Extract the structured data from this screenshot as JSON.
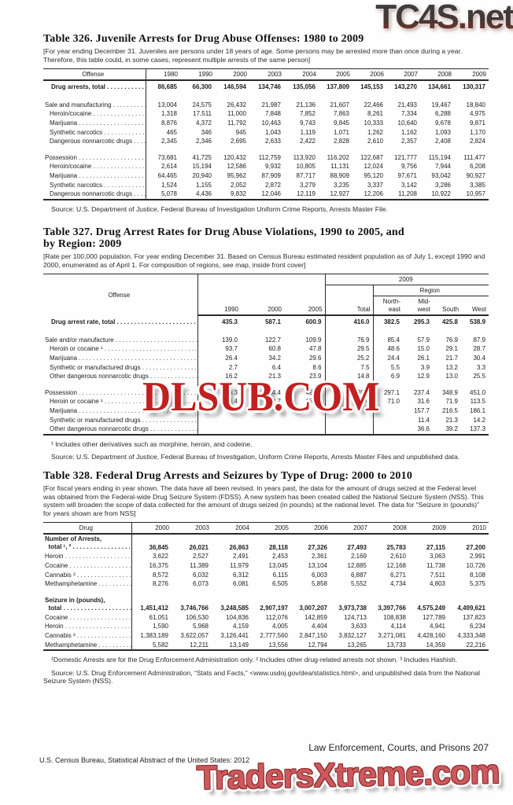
{
  "watermarks": {
    "top": "TC4S.net",
    "middle": "DLSUB.COM",
    "bottom": "TradersXtreme.com",
    "red_accent": "#c32020",
    "pink_accent": "#cb5a5c",
    "dark_gradient": [
      "#3d3d3d",
      "#7d3227"
    ]
  },
  "t326": {
    "title": "Table 326. Juvenile Arrests for Drug Abuse Offenses: 1980 to 2009",
    "note": "[For year ending December 31. Juveniles are persons under 18 years of age. Some persons may be arrested more than once during a year. Therefore, this table could, in some cases, represent multiple arrests of the same person]",
    "col_label": "Offense",
    "years": [
      "1980",
      "1990",
      "2000",
      "2003",
      "2004",
      "2005",
      "2006",
      "2007",
      "2008",
      "2009"
    ],
    "rows": [
      {
        "label": "Drug arrests, total",
        "cls": "total",
        "cells": [
          "86,685",
          "66,300",
          "146,594",
          "134,746",
          "135,056",
          "137,809",
          "145,153",
          "143,270",
          "134,661",
          "130,317"
        ]
      },
      {
        "spacer": true
      },
      {
        "label": "Sale and manufacturing",
        "cls": "",
        "cells": [
          "13,004",
          "24,575",
          "26,432",
          "21,987",
          "21,136",
          "21,607",
          "22,466",
          "21,493",
          "19,467",
          "18,840"
        ]
      },
      {
        "label": "Heroin/cocaine",
        "cls": "sub",
        "cells": [
          "1,318",
          "17,511",
          "11,000",
          "7,848",
          "7,852",
          "7,863",
          "8,261",
          "7,334",
          "6,288",
          "4,975"
        ]
      },
      {
        "label": "Marijuana",
        "cls": "sub",
        "cells": [
          "8,876",
          "4,372",
          "11,792",
          "10,463",
          "9,743",
          "9,845",
          "10,333",
          "10,640",
          "9,678",
          "9,871"
        ]
      },
      {
        "label": "Synthetic narcotics",
        "cls": "sub",
        "cells": [
          "465",
          "346",
          "945",
          "1,043",
          "1,119",
          "1,071",
          "1,262",
          "1,162",
          "1,093",
          "1,170"
        ]
      },
      {
        "label": "Dangerous nonnarcotic drugs",
        "cls": "sub",
        "cells": [
          "2,345",
          "2,346",
          "2,695",
          "2,633",
          "2,422",
          "2,828",
          "2,610",
          "2,357",
          "2,408",
          "2,824"
        ]
      },
      {
        "spacer": true
      },
      {
        "label": "Possession",
        "cls": "",
        "cells": [
          "73,681",
          "41,725",
          "120,432",
          "112,759",
          "113,920",
          "116,202",
          "122,687",
          "121,777",
          "115,194",
          "111,477"
        ]
      },
      {
        "label": "Heroin/cocaine",
        "cls": "sub",
        "cells": [
          "2,614",
          "15,194",
          "12,586",
          "9,932",
          "10,805",
          "11,131",
          "12,024",
          "9,756",
          "7,944",
          "6,208"
        ]
      },
      {
        "label": "Marijuana",
        "cls": "sub",
        "cells": [
          "64,465",
          "20,940",
          "95,962",
          "87,909",
          "87,717",
          "88,909",
          "95,120",
          "97,671",
          "93,042",
          "90,927"
        ]
      },
      {
        "label": "Synthetic narcotics",
        "cls": "sub",
        "cells": [
          "1,524",
          "1,155",
          "2,052",
          "2,872",
          "3,279",
          "3,235",
          "3,337",
          "3,142",
          "3,286",
          "3,385"
        ]
      },
      {
        "label": "Dangerous nonnarcotic drugs",
        "cls": "sub",
        "cells": [
          "5,078",
          "4,436",
          "9,832",
          "12,046",
          "12,119",
          "12,927",
          "12,206",
          "11,208",
          "10,922",
          "10,957"
        ]
      }
    ],
    "source": "Source: U.S. Department of Justice, Federal Bureau of Investigation Uniform Crime Reports, Arrests Master File."
  },
  "t327": {
    "title_line1": "Table 327. Drug Arrest Rates for Drug Abuse Violations, 1990 to 2005, and",
    "title_line2": "by Region: 2009",
    "note": "[Rate per 100,000 population. For year ending December 31. Based on Census Bureau estimated resident population as of July 1, except 1990 and 2000, enumerated as of April 1. For composition of regions, see map, inside front cover]",
    "header": {
      "offense": "Offense",
      "spanner_year": "2009",
      "spanner_region": "Region",
      "cols": [
        "1990",
        "2000",
        "2005",
        "Total",
        "North-\neast",
        "Mid-\nwest",
        "South",
        "West"
      ]
    },
    "rows": [
      {
        "label": "Drug arrest rate, total",
        "cls": "total",
        "cells": [
          "435.3",
          "587.1",
          "600.9",
          "416.0",
          "382.5",
          "295.3",
          "425.8",
          "538.9"
        ]
      },
      {
        "spacer": true
      },
      {
        "label": "Sale and/or manufacture",
        "cls": "",
        "cells": [
          "139.0",
          "122.7",
          "109.9",
          "76.9",
          "85.4",
          "57.9",
          "76.9",
          "87.9"
        ]
      },
      {
        "label": "Heroin or cocaine ¹",
        "cls": "sub",
        "cells": [
          "93.7",
          "60.8",
          "47.8",
          "29.5",
          "48.6",
          "15.0",
          "29.1",
          "28.7"
        ]
      },
      {
        "label": "Marijuana",
        "cls": "sub",
        "cells": [
          "26.4",
          "34.2",
          "29.6",
          "25.2",
          "24.4",
          "26.1",
          "21.7",
          "30.4"
        ]
      },
      {
        "label": "Synthetic or manufactured drugs",
        "cls": "sub",
        "cells": [
          "2.7",
          "6.4",
          "8.6",
          "7.5",
          "5.5",
          "3.9",
          "13.2",
          "3.3"
        ]
      },
      {
        "label": "Other dangerous nonnarcotic drugs",
        "cls": "sub",
        "cells": [
          "16.2",
          "21.3",
          "23.9",
          "14.8",
          "6.9",
          "12.9",
          "13.0",
          "25.5"
        ]
      },
      {
        "spacer": true
      },
      {
        "label": "Possession",
        "cls": "",
        "cells": [
          "296.3",
          "464.4",
          "490.9",
          "339.1",
          "297.1",
          "237.4",
          "348.9",
          "451.0"
        ]
      },
      {
        "label": "Heroin or cocaine ¹",
        "cls": "sub",
        "cells": [
          "144.4",
          "132.7",
          "131.5",
          "73.0",
          "71.0",
          "31.6",
          "71.9",
          "113.5"
        ]
      },
      {
        "label": "Marijuana",
        "cls": "sub",
        "cells": [
          "",
          "",
          "",
          "",
          "",
          "157.7",
          "216.5",
          "186.1"
        ]
      },
      {
        "label": "Synthetic or manufactured drugs",
        "cls": "sub",
        "cells": [
          "",
          "",
          "",
          "",
          "",
          "11.4",
          "21.3",
          "14.2"
        ]
      },
      {
        "label": "Other dangerous nonnarcotic drugs",
        "cls": "sub",
        "cells": [
          "",
          "",
          "",
          "",
          "",
          "36.6",
          "39.2",
          "137.3"
        ]
      }
    ],
    "footnote1": "¹ Includes other derivatives such as morphine, heroin, and codeine.",
    "source": "Source: U.S. Department of Justice, Federal Bureau of Investigation, Uniform Crime Reports, Arrests Master Files and unpublished data."
  },
  "t328": {
    "title": "Table 328. Federal Drug Arrests and Seizures by Type of Drug: 2000 to 2010",
    "note": "[For fiscal years ending in year shown. The data have all been revised. In years past, the data for the amount of drugs seized at the Federal level was obtained from the Federal-wide Drug Seizure System (FDSS). A new system has been created called the National Seizure System (NSS). This system will broaden the scope of data collected for the amount of drugs seized (in pounds) at the national level.  The data for “Seizure in (pounds)” for years shown are from NSS]",
    "col_label": "Drug",
    "years": [
      "2000",
      "2003",
      "2004",
      "2005",
      "2006",
      "2007",
      "2008",
      "2009",
      "2010"
    ],
    "rows": [
      {
        "label": "Number of Arrests,\n  total ¹, ²",
        "cls": "section",
        "cells": [
          "36,845",
          "26,021",
          "26,863",
          "28,118",
          "27,326",
          "27,493",
          "25,783",
          "27,115",
          "27,200"
        ]
      },
      {
        "label": "Heroin",
        "cls": "",
        "cells": [
          "3,622",
          "2,527",
          "2,491",
          "2,453",
          "2,361",
          "2,169",
          "2,610",
          "3,063",
          "2,991"
        ]
      },
      {
        "label": "Cocaine",
        "cls": "",
        "cells": [
          "16,375",
          "11,389",
          "11,979",
          "13,045",
          "13,104",
          "12,885",
          "12,168",
          "11,738",
          "10,726"
        ]
      },
      {
        "label": "Cannabis ³",
        "cls": "",
        "cells": [
          "8,572",
          "6,032",
          "6,312",
          "6,115",
          "6,003",
          "6,887",
          "6,271",
          "7,511",
          "8,108"
        ]
      },
      {
        "label": "Methamphetamine",
        "cls": "",
        "cells": [
          "8,276",
          "6,073",
          "6,081",
          "6,505",
          "5,858",
          "5,552",
          "4,734",
          "4,803",
          "5,375"
        ]
      },
      {
        "spacer": true
      },
      {
        "label": "Seizure in (pounds),\n  total",
        "cls": "section",
        "cells": [
          "1,451,412",
          "3,746,766",
          "3,248,585",
          "2,907,197",
          "3,007,207",
          "3,973,738",
          "3,397,766",
          "4,575,249",
          "4,499,621"
        ]
      },
      {
        "label": "Cocaine",
        "cls": "",
        "cells": [
          "61,051",
          "106,530",
          "104,836",
          "112,076",
          "142,859",
          "124,713",
          "108,838",
          "127,789",
          "137,823"
        ]
      },
      {
        "label": "Heroin",
        "cls": "",
        "cells": [
          "1,590",
          "5,968",
          "4,159",
          "4,005",
          "4,404",
          "3,633",
          "4,114",
          "4,941",
          "6,234"
        ]
      },
      {
        "label": "Cannabis ³",
        "cls": "",
        "cells": [
          "1,383,189",
          "3,622,057",
          "3,126,441",
          "2,777,560",
          "2,847,150",
          "3,832,127",
          "3,271,081",
          "4,428,160",
          "4,333,348"
        ]
      },
      {
        "label": "Methamphetamine",
        "cls": "",
        "cells": [
          "5,582",
          "12,211",
          "13,149",
          "13,556",
          "12,794",
          "13,265",
          "13,733",
          "14,359",
          "22,216"
        ]
      }
    ],
    "footnote1": "¹Domestic Arrests are for the Drug Enforcement Administration only. ² Includes other drug-related arrests not shown. ³ Includes Hashish.",
    "source": "Source: U.S. Drug Enforcement Administration, “Stats and Facts,” <www.usdoj.gov/dea/statistics.html>, and unpublished data from the National Seizure System (NSS)."
  },
  "footer": {
    "right": "Law Enforcement, Courts, and Prisons  207",
    "left": "U.S. Census Bureau, Statistical Abstract of the United States: 2012"
  }
}
